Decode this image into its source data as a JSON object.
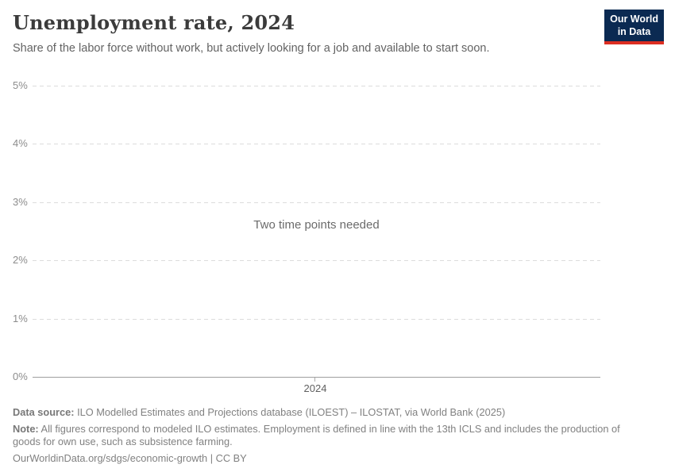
{
  "header": {
    "title": "Unemployment rate, 2024",
    "subtitle": "Share of the labor force without work, but actively looking for a job and available to start soon."
  },
  "logo": {
    "line1": "Our World",
    "line2": "in Data",
    "bg_color": "#0b2a52",
    "accent_color": "#dc2e22"
  },
  "chart_data": {
    "type": "line",
    "title": "Unemployment rate, 2024",
    "series": [],
    "x": [
      2024
    ],
    "empty_message": "Two time points needed",
    "xlabel": "",
    "ylabel": "",
    "x_tick_labels": [
      "2024"
    ],
    "y_tick_display": [
      "5%",
      "4%",
      "3%",
      "2%",
      "1%",
      "0%"
    ],
    "y_ticks": [
      0,
      1,
      2,
      3,
      4,
      5
    ],
    "ylim": [
      0,
      5
    ],
    "grid": "horizontal-dashed",
    "legend": "none"
  },
  "footer": {
    "data_source_label": "Data source:",
    "data_source_text": " ILO Modelled Estimates and Projections database (ILOEST) – ILOSTAT, via World Bank (2025)",
    "note_label": "Note:",
    "note_text": " All figures correspond to modeled ILO estimates. Employment is defined in line with the 13th ICLS and includes the production of goods for own use, such as subsistence farming.",
    "link": "OurWorldinData.org/sdgs/economic-growth",
    "separator": " | ",
    "license": "CC BY"
  }
}
